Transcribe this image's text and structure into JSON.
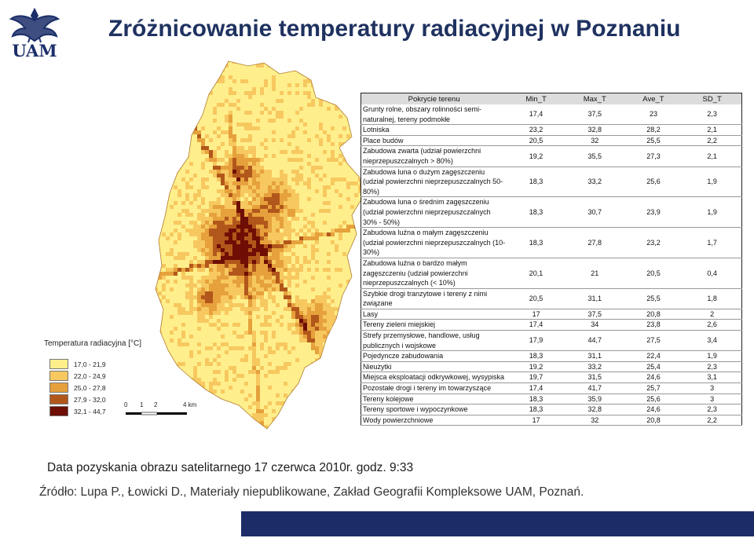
{
  "logo": {
    "text": "UAM",
    "icon": "eagle-emblem-icon"
  },
  "title": "Zróżnicowanie temperatury radiacyjnej w Poznaniu",
  "legend": {
    "title": "Temperatura radiacyjna [°C]",
    "items": [
      {
        "label": "17,0 - 21,9",
        "color": "#ffef8c"
      },
      {
        "label": "22,0 - 24,9",
        "color": "#f7c860"
      },
      {
        "label": "25,0 - 27,8",
        "color": "#e6a13c"
      },
      {
        "label": "27,9 - 32,0",
        "color": "#b2571b"
      },
      {
        "label": "32,1 - 44,7",
        "color": "#6e0e04"
      }
    ]
  },
  "scale": {
    "ticks": [
      "0",
      "1",
      "2",
      "4 km"
    ]
  },
  "table": {
    "headers": [
      "Pokrycie terenu",
      "Min_T",
      "Max_T",
      "Ave_T",
      "SD_T"
    ],
    "rows": [
      {
        "cat": "Grunty rolne, obszary ro\u0015linności semi-naturalnej, tereny podmokłe",
        "min": "17,4",
        "max": "37,5",
        "ave": "23",
        "sd": "2,3"
      },
      {
        "cat": "Lotniska",
        "min": "23,2",
        "max": "32,8",
        "ave": "28,2",
        "sd": "2,1"
      },
      {
        "cat": "Place budów",
        "min": "20,5",
        "max": "32",
        "ave": "25,5",
        "sd": "2,2"
      },
      {
        "cat": "Zabudowa zwarta (udział powierzchni nieprzepuszczalnych > 80%)",
        "min": "19,2",
        "max": "35,5",
        "ave": "27,3",
        "sd": "2,1"
      },
      {
        "cat": "Zabudowa lu\u0015na o dużym zagęszczeniu (udział powierzchni nieprzepuszczalnych 50-80%)",
        "min": "18,3",
        "max": "33,2",
        "ave": "25,6",
        "sd": "1,9"
      },
      {
        "cat": "Zabudowa lu\u0015na o średnim zagęszczeniu (udział powierzchni nieprzepuszczalnych 30% - 50%)",
        "min": "18,3",
        "max": "30,7",
        "ave": "23,9",
        "sd": "1,9"
      },
      {
        "cat": "Zabudowa lu\u0015źna o małym zagęszczeniu (udział powierzchni nieprzepuszczalnych (10-30%)",
        "min": "18,3",
        "max": "27,8",
        "ave": "23,2",
        "sd": "1,7"
      },
      {
        "cat": "Zabudowa lu\u0015źna o bardzo małym zagęszczeniu (udział powierzchni nieprzepuszczalnych (< 10%)",
        "min": "20,1",
        "max": "21",
        "ave": "20,5",
        "sd": "0,4"
      },
      {
        "cat": "Szybkie drogi tranzytowe i tereny z nimi związane",
        "min": "20,5",
        "max": "31,1",
        "ave": "25,5",
        "sd": "1,8"
      },
      {
        "cat": "Lasy",
        "min": "17",
        "max": "37,5",
        "ave": "20,8",
        "sd": "2"
      },
      {
        "cat": "Tereny zieleni miejskiej",
        "min": "17,4",
        "max": "34",
        "ave": "23,8",
        "sd": "2,6"
      },
      {
        "cat": "Strefy przemysłowe, handlowe, usług publicznych i wojskowe",
        "min": "17,9",
        "max": "44,7",
        "ave": "27,5",
        "sd": "3,4"
      },
      {
        "cat": "Pojedyncze zabudowania",
        "min": "18,3",
        "max": "31,1",
        "ave": "22,4",
        "sd": "1,9"
      },
      {
        "cat": "Nieużytki",
        "min": "19,2",
        "max": "33,2",
        "ave": "25,4",
        "sd": "2,3"
      },
      {
        "cat": "Miejsca eksploatacji odkrywkowej, wysypiska",
        "min": "19,7",
        "max": "31,5",
        "ave": "24,6",
        "sd": "3,1"
      },
      {
        "cat": "Pozostałe drogi i tereny im towarzyszące",
        "min": "17,4",
        "max": "41,7",
        "ave": "25,7",
        "sd": "3"
      },
      {
        "cat": "Tereny kolejowe",
        "min": "18,3",
        "max": "35,9",
        "ave": "25,6",
        "sd": "3"
      },
      {
        "cat": "Tereny sportowe i wypoczynkowe",
        "min": "18,3",
        "max": "32,8",
        "ave": "24,6",
        "sd": "2,3"
      },
      {
        "cat": "Wody powierzchniowe",
        "min": "17",
        "max": "32",
        "ave": "20,8",
        "sd": "2,2"
      }
    ]
  },
  "caption_date": "Data pozyskania obrazu satelitarnego 17 czerwca 2010r. godz. 9:33",
  "caption_source": "Źródło: Lupa P., Łowicki D., Materiały niepublikowane, Zakład Geografii Kompleksowe UAM, Poznań.",
  "colors": {
    "title": "#1f3260",
    "bar": "#1c2c66"
  }
}
